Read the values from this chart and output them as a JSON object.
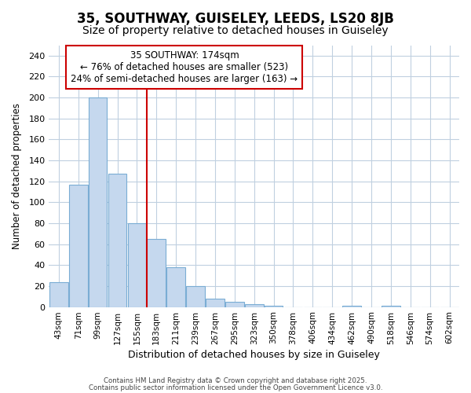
{
  "title_line1": "35, SOUTHWAY, GUISELEY, LEEDS, LS20 8JB",
  "title_line2": "Size of property relative to detached houses in Guiseley",
  "xlabel": "Distribution of detached houses by size in Guiseley",
  "ylabel": "Number of detached properties",
  "bar_values": [
    24,
    117,
    200,
    127,
    80,
    65,
    38,
    20,
    8,
    5,
    3,
    1,
    0,
    0,
    0,
    1,
    0,
    1,
    0,
    0,
    0
  ],
  "categories": [
    "43sqm",
    "71sqm",
    "99sqm",
    "127sqm",
    "155sqm",
    "183sqm",
    "211sqm",
    "239sqm",
    "267sqm",
    "295sqm",
    "323sqm",
    "350sqm",
    "378sqm",
    "406sqm",
    "434sqm",
    "462sqm",
    "490sqm",
    "518sqm",
    "546sqm",
    "574sqm",
    "602sqm"
  ],
  "bar_color": "#c5d8ee",
  "bar_edgecolor": "#7aadd4",
  "bar_linewidth": 0.8,
  "ylim": [
    0,
    250
  ],
  "yticks": [
    0,
    20,
    40,
    60,
    80,
    100,
    120,
    140,
    160,
    180,
    200,
    220,
    240
  ],
  "red_line_x": 4.5,
  "annotation_title": "35 SOUTHWAY: 174sqm",
  "annotation_line1": "← 76% of detached houses are smaller (523)",
  "annotation_line2": "24% of semi-detached houses are larger (163) →",
  "annotation_box_color": "#ffffff",
  "annotation_box_edgecolor": "#cc0000",
  "red_line_color": "#cc0000",
  "grid_color": "#c0d0e0",
  "background_color": "#ffffff",
  "footer_line1": "Contains HM Land Registry data © Crown copyright and database right 2025.",
  "footer_line2": "Contains public sector information licensed under the Open Government Licence v3.0.",
  "title_fontsize": 12,
  "subtitle_fontsize": 10
}
